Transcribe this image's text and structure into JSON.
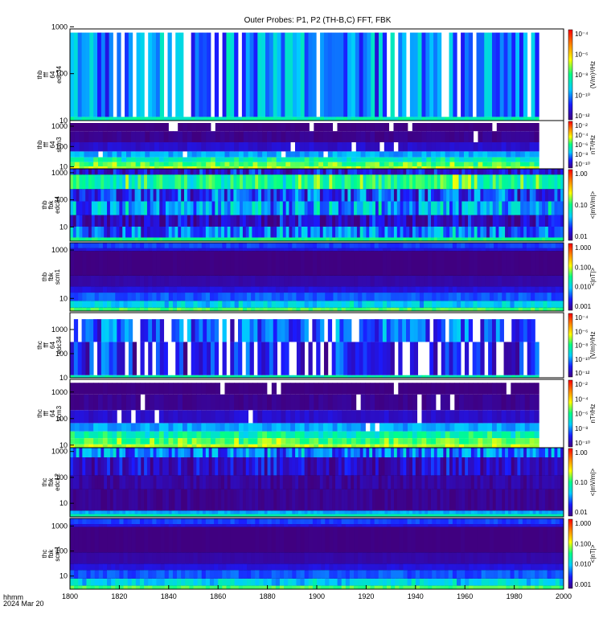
{
  "title": "Outer Probes: P1, P2 (TH-B,C) FFT, FBK",
  "corner_label": {
    "line1": "hhmm",
    "line2": "2024 Mar 20"
  },
  "x_axis": {
    "range": [
      1800,
      2000
    ],
    "ticks": [
      "1800",
      "1820",
      "1840",
      "1860",
      "1880",
      "1900",
      "1920",
      "1940",
      "1960",
      "1980",
      "2000"
    ],
    "tick_values": [
      1800,
      1820,
      1840,
      1860,
      1880,
      1900,
      1920,
      1940,
      1960,
      1980,
      2000
    ]
  },
  "colormap": [
    "#ffffff",
    "#400080",
    "#1a1aff",
    "#00ccff",
    "#00ff88",
    "#ffff00",
    "#ff8800",
    "#ff0000",
    "#000000"
  ],
  "chart_data": [
    {
      "type": "heatmap",
      "ylabel": [
        "thb",
        "fff",
        "64",
        "edc34"
      ],
      "yticks": [
        "10",
        "100",
        "1000"
      ],
      "y_log_range": [
        10,
        900
      ],
      "colorbar_label": "(V/m)²/Hz",
      "colorbar_ticks": [
        "10⁻⁴",
        "10⁻⁶",
        "10⁻⁸",
        "10⁻¹⁰",
        "10⁻¹²"
      ],
      "data_end_fraction": 0.95,
      "style": "e_fff"
    },
    {
      "type": "heatmap",
      "ylabel": [
        "thb",
        "fff",
        "64",
        "scm3"
      ],
      "yticks": [
        "10",
        "100",
        "1000"
      ],
      "y_log_range": [
        8,
        1900
      ],
      "colorbar_label": "nT²/Hz",
      "colorbar_ticks": [
        "10⁻²",
        "10⁻⁴",
        "10⁻⁶",
        "10⁻⁸",
        "10⁻¹⁰"
      ],
      "data_end_fraction": 0.95,
      "style": "b_fff"
    },
    {
      "type": "heatmap",
      "ylabel": [
        "thb",
        "fbk",
        "edc34"
      ],
      "yticks": [
        "10",
        "100",
        "1000"
      ],
      "y_log_range": [
        3,
        1400
      ],
      "colorbar_label": "<|mV/m|>",
      "colorbar_ticks": [
        "1.00",
        "0.10",
        "0.01"
      ],
      "data_end_fraction": 1.0,
      "style": "e_fbk"
    },
    {
      "type": "heatmap",
      "ylabel": [
        "thb",
        "fbk",
        "scm1"
      ],
      "yticks": [
        "10",
        "1000"
      ],
      "y_log_range": [
        3,
        2000
      ],
      "colorbar_label": "<|nT|>",
      "colorbar_ticks": [
        "1.000",
        "0.100",
        "0.010",
        "0.001"
      ],
      "data_end_fraction": 1.0,
      "style": "b_fbk"
    },
    {
      "type": "heatmap",
      "ylabel": [
        "thc",
        "fff",
        "64",
        "edc34"
      ],
      "yticks": [
        "10",
        "100",
        "1000"
      ],
      "y_log_range": [
        10,
        5000
      ],
      "colorbar_label": "(V/m)²/Hz",
      "colorbar_ticks": [
        "10⁻⁴",
        "10⁻⁶",
        "10⁻⁸",
        "10⁻¹⁰",
        "10⁻¹²"
      ],
      "data_end_fraction": 0.95,
      "style": "e_fff_c"
    },
    {
      "type": "heatmap",
      "ylabel": [
        "thc",
        "fff",
        "64",
        "scm3"
      ],
      "yticks": [
        "10",
        "100",
        "1000"
      ],
      "y_log_range": [
        8,
        3000
      ],
      "colorbar_label": "nT²/Hz",
      "colorbar_ticks": [
        "10⁻²",
        "10⁻⁴",
        "10⁻⁶",
        "10⁻⁸",
        "10⁻¹⁰"
      ],
      "data_end_fraction": 0.95,
      "style": "b_fff"
    },
    {
      "type": "heatmap",
      "ylabel": [
        "thc",
        "fbk",
        "edc12"
      ],
      "yticks": [
        "10",
        "100",
        "1000"
      ],
      "y_log_range": [
        3,
        1400
      ],
      "colorbar_label": "<|mV/m|>",
      "colorbar_ticks": [
        "1.00",
        "0.10",
        "0.01"
      ],
      "data_end_fraction": 1.0,
      "style": "e_fbk_c"
    },
    {
      "type": "heatmap",
      "ylabel": [
        "thc",
        "fbk",
        "scm1"
      ],
      "yticks": [
        "10",
        "100",
        "1000"
      ],
      "y_log_range": [
        3,
        2000
      ],
      "colorbar_label": "<|nT|>",
      "colorbar_ticks": [
        "1.000",
        "0.100",
        "0.010",
        "0.001"
      ],
      "data_end_fraction": 1.0,
      "style": "b_fbk"
    }
  ]
}
